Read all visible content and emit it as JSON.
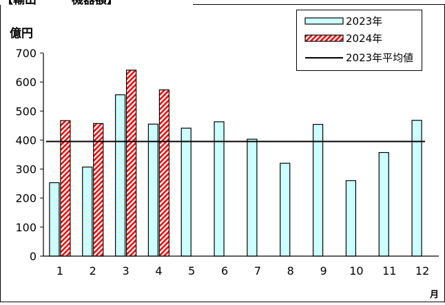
{
  "chart_data": {
    "type": "bar",
    "title": "【輸出　　　機器額】",
    "ylabel": "億円",
    "xlabel": "月",
    "categories": [
      "1",
      "2",
      "3",
      "4",
      "5",
      "6",
      "7",
      "8",
      "9",
      "10",
      "11",
      "12"
    ],
    "ylim": [
      0,
      700
    ],
    "yticks": [
      0,
      100,
      200,
      300,
      400,
      500,
      600,
      700
    ],
    "grid": false,
    "legend_position": "top-right",
    "series": [
      {
        "name": "2023年",
        "values": [
          253,
          307,
          556,
          455,
          441,
          463,
          403,
          320,
          454,
          260,
          357,
          468
        ],
        "fill": "#ccffff",
        "stroke": "#000000",
        "pattern": "solid"
      },
      {
        "name": "2024年",
        "values": [
          467,
          457,
          641,
          573,
          null,
          null,
          null,
          null,
          null,
          null,
          null,
          null
        ],
        "fill": "#ff0000",
        "stroke": "#000000",
        "pattern": "diagonal-stripes"
      }
    ],
    "reference_lines": [
      {
        "name": "2023年平均値",
        "value": 395,
        "color": "#000000"
      }
    ]
  }
}
